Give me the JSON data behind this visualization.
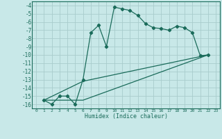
{
  "xlabel": "Humidex (Indice chaleur)",
  "background_color": "#c8e8e8",
  "grid_color": "#a8cccc",
  "line_color": "#1a6b5a",
  "xlim": [
    -0.5,
    23.5
  ],
  "ylim": [
    -16.5,
    -3.5
  ],
  "xtick_labels": [
    "0",
    "1",
    "2",
    "3",
    "4",
    "5",
    "6",
    "7",
    "8",
    "9",
    "10",
    "11",
    "12",
    "13",
    "14",
    "15",
    "16",
    "17",
    "18",
    "19",
    "20",
    "21",
    "22",
    "23"
  ],
  "xtick_vals": [
    0,
    1,
    2,
    3,
    4,
    5,
    6,
    7,
    8,
    9,
    10,
    11,
    12,
    13,
    14,
    15,
    16,
    17,
    18,
    19,
    20,
    21,
    22,
    23
  ],
  "ytick_vals": [
    -16,
    -15,
    -14,
    -13,
    -12,
    -11,
    -10,
    -9,
    -8,
    -7,
    -6,
    -5,
    -4
  ],
  "line1_x": [
    1,
    2,
    3,
    4,
    5,
    6,
    7,
    8,
    9,
    10,
    11,
    12,
    13,
    14,
    15,
    16,
    17,
    18,
    19,
    20,
    21,
    22
  ],
  "line1_y": [
    -15.5,
    -16,
    -15,
    -15,
    -16,
    -13,
    -7.3,
    -6.4,
    -9,
    -4.2,
    -4.4,
    -4.6,
    -5.2,
    -6.2,
    -6.7,
    -6.8,
    -7.0,
    -6.5,
    -6.7,
    -7.3,
    -10.1,
    -10.0
  ],
  "line2_x": [
    1,
    6,
    22
  ],
  "line2_y": [
    -15.5,
    -13.2,
    -10.0
  ],
  "line3_x": [
    1,
    6,
    22
  ],
  "line3_y": [
    -15.5,
    -15.5,
    -10.0
  ]
}
